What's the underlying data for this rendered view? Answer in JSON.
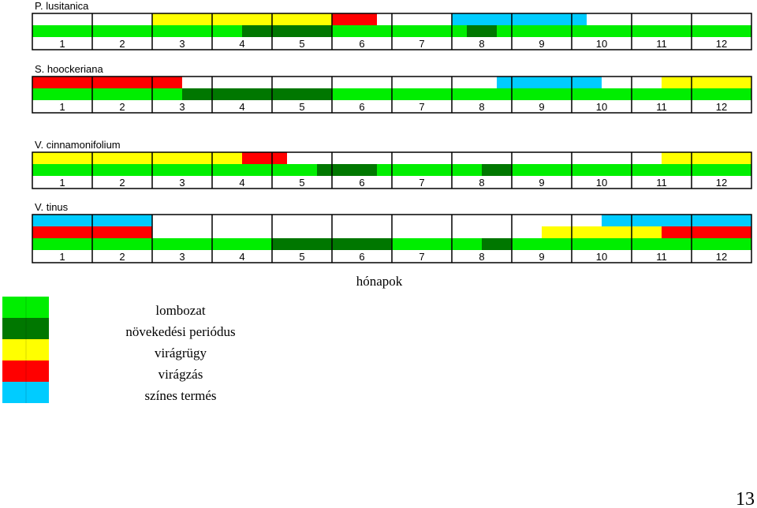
{
  "chart_data": {
    "type": "phenology-timeline",
    "xlabel": "hónapok",
    "months": [
      "1",
      "2",
      "3",
      "4",
      "5",
      "6",
      "7",
      "8",
      "9",
      "10",
      "11",
      "12"
    ],
    "colors": {
      "lombozat": "#00ee00",
      "novekedes": "#007700",
      "viragrugy": "#ffff00",
      "viragzas": "#ff0000",
      "szines_termes": "#00ccff"
    },
    "panels": [
      {
        "name": "P. lusitanica",
        "rows": [
          [
            {
              "phase": "viragrugy",
              "from": 3.0,
              "to": 6.0
            },
            {
              "phase": "viragzas",
              "from": 6.0,
              "to": 6.75
            },
            {
              "phase": "szines_termes",
              "from": 8.0,
              "to": 10.25
            }
          ],
          [
            {
              "phase": "lombozat",
              "from": 1.0,
              "to": 4.5
            },
            {
              "phase": "novekedes",
              "from": 4.5,
              "to": 6.0
            },
            {
              "phase": "lombozat",
              "from": 6.0,
              "to": 8.25
            },
            {
              "phase": "novekedes",
              "from": 8.25,
              "to": 8.75
            },
            {
              "phase": "lombozat",
              "from": 8.75,
              "to": 13.0
            }
          ]
        ]
      },
      {
        "name": "S. hoockeriana",
        "rows": [
          [
            {
              "phase": "viragzas",
              "from": 1.0,
              "to": 3.5
            },
            {
              "phase": "szines_termes",
              "from": 8.75,
              "to": 10.5
            },
            {
              "phase": "viragrugy",
              "from": 11.5,
              "to": 13.0
            }
          ],
          [
            {
              "phase": "lombozat",
              "from": 1.0,
              "to": 3.5
            },
            {
              "phase": "novekedes",
              "from": 3.5,
              "to": 6.0
            },
            {
              "phase": "lombozat",
              "from": 6.0,
              "to": 13.0
            }
          ]
        ]
      },
      {
        "name": "V. cinnamonifolium",
        "rows": [
          [
            {
              "phase": "viragrugy",
              "from": 1.0,
              "to": 4.5
            },
            {
              "phase": "viragzas",
              "from": 4.5,
              "to": 5.25
            },
            {
              "phase": "viragrugy",
              "from": 11.5,
              "to": 13.0
            }
          ],
          [
            {
              "phase": "lombozat",
              "from": 1.0,
              "to": 5.75
            },
            {
              "phase": "novekedes",
              "from": 5.75,
              "to": 6.75
            },
            {
              "phase": "lombozat",
              "from": 6.75,
              "to": 8.5
            },
            {
              "phase": "novekedes",
              "from": 8.5,
              "to": 9.0
            },
            {
              "phase": "lombozat",
              "from": 9.0,
              "to": 13.0
            }
          ]
        ]
      },
      {
        "name": "V. tinus",
        "rows": [
          [
            {
              "phase": "szines_termes",
              "from": 1.0,
              "to": 3.0
            },
            {
              "phase": "szines_termes",
              "from": 10.5,
              "to": 13.0
            }
          ],
          [
            {
              "phase": "viragzas",
              "from": 1.0,
              "to": 3.0
            },
            {
              "phase": "viragrugy",
              "from": 9.5,
              "to": 11.5
            },
            {
              "phase": "viragzas",
              "from": 11.5,
              "to": 13.0
            }
          ],
          [
            {
              "phase": "lombozat",
              "from": 1.0,
              "to": 5.0
            },
            {
              "phase": "novekedes",
              "from": 5.0,
              "to": 7.0
            },
            {
              "phase": "lombozat",
              "from": 7.0,
              "to": 8.5
            },
            {
              "phase": "novekedes",
              "from": 8.5,
              "to": 9.0
            },
            {
              "phase": "lombozat",
              "from": 9.0,
              "to": 13.0
            }
          ]
        ]
      }
    ],
    "legend": [
      {
        "phase": "lombozat",
        "label": "lombozat"
      },
      {
        "phase": "novekedes",
        "label": "növekedési periódus"
      },
      {
        "phase": "viragrugy",
        "label": "virágrügy"
      },
      {
        "phase": "viragzas",
        "label": "virágzás"
      },
      {
        "phase": "szines_termes",
        "label": "színes termés"
      }
    ]
  },
  "page_number": "13"
}
